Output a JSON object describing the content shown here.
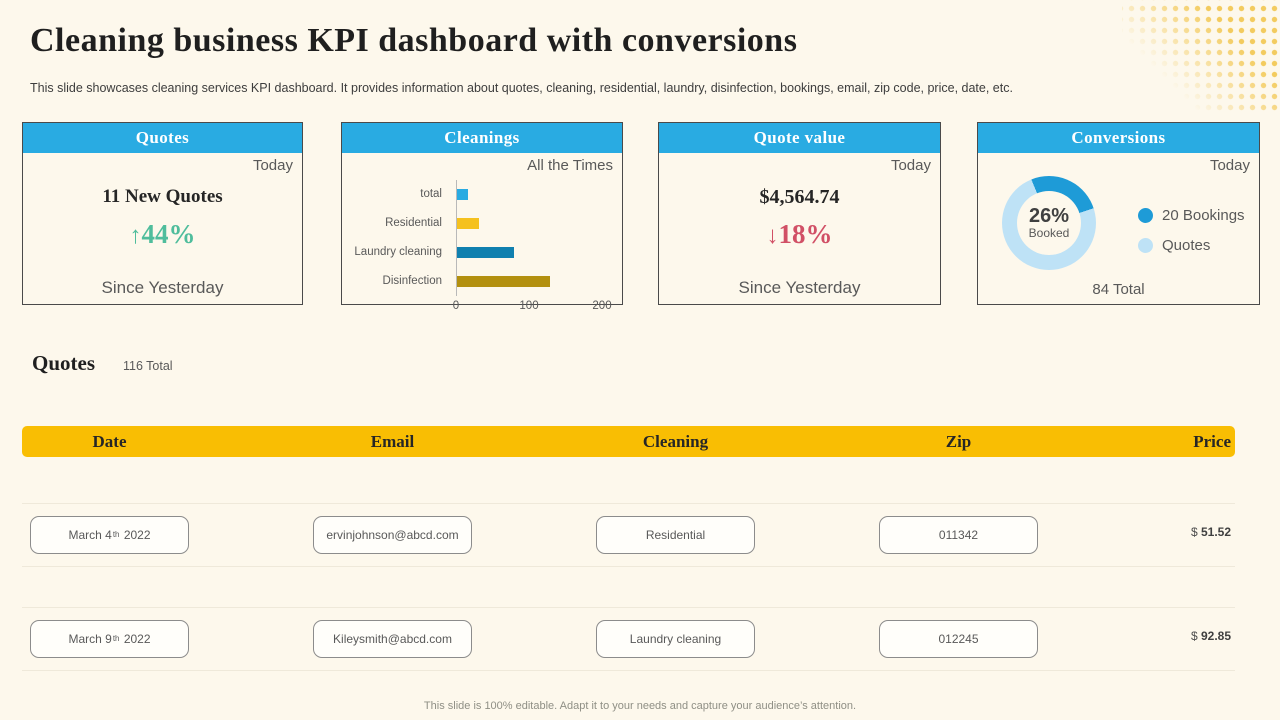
{
  "page": {
    "title": "Cleaning business KPI dashboard with conversions",
    "subtitle": "This slide showcases cleaning services KPI dashboard. It provides information about quotes, cleaning, residential, laundry, disinfection, bookings, email, zip code, price, date, etc.",
    "footer": "This slide is 100% editable. Adapt it to your needs and capture your audience’s attention."
  },
  "colors": {
    "accent_blue": "#29ABE2",
    "header_yellow": "#F9BE03",
    "positive_green": "#4FBD9C",
    "negative_red": "#D15066",
    "cream_background": "#FDF8EC"
  },
  "cards": {
    "quotes": {
      "title": "Quotes",
      "period": "Today",
      "metric": "11 New Quotes",
      "change_arrow": "↑",
      "change_value": "44%",
      "footnote": "Since Yesterday"
    },
    "cleanings": {
      "title": "Cleanings",
      "period": "All the Times"
    },
    "quote_value": {
      "title": "Quote value",
      "period": "Today",
      "metric": "$4,564.74",
      "change_arrow": "↓",
      "change_value": "18%",
      "footnote": "Since Yesterday"
    },
    "conversions": {
      "title": "Conversions",
      "period": "Today",
      "percent": "26%",
      "percent_label": "Booked",
      "booked_pct": 26,
      "total": "84 Total",
      "legend": [
        {
          "label": "20 Bookings",
          "color": "#1E9BD7"
        },
        {
          "label": "Quotes",
          "color": "#BEE2F6"
        }
      ]
    }
  },
  "chart_data": {
    "type": "bar",
    "orientation": "horizontal",
    "title": "Cleanings",
    "period_label": "All the Times",
    "categories": [
      "total",
      "Residential",
      "Laundry cleaning",
      "Disinfection"
    ],
    "values": [
      15,
      30,
      78,
      128
    ],
    "colors": [
      "#29ABE2",
      "#F5C11E",
      "#1080AF",
      "#B3900F"
    ],
    "xticks": [
      0,
      100,
      200
    ],
    "xlim": [
      0,
      220
    ],
    "grid": false,
    "legend_position": "none"
  },
  "quotes_table": {
    "section_title": "Quotes",
    "total_label": "116 Total",
    "columns": [
      "Date",
      "Email",
      "Cleaning",
      "Zip",
      "Price"
    ],
    "rows": [
      {
        "date_main": "March 4",
        "date_ordinal": "th",
        "date_year": "2022",
        "email": "ervinjohnson@abcd.com",
        "cleaning": "Residential",
        "zip": "011342",
        "price_currency": "$",
        "price_amount": "51.52"
      },
      {
        "date_main": "March 9",
        "date_ordinal": "th",
        "date_year": "2022",
        "email": "Kileysmith@abcd.com",
        "cleaning": "Laundry cleaning",
        "zip": "012245",
        "price_currency": "$",
        "price_amount": "92.85"
      }
    ]
  }
}
